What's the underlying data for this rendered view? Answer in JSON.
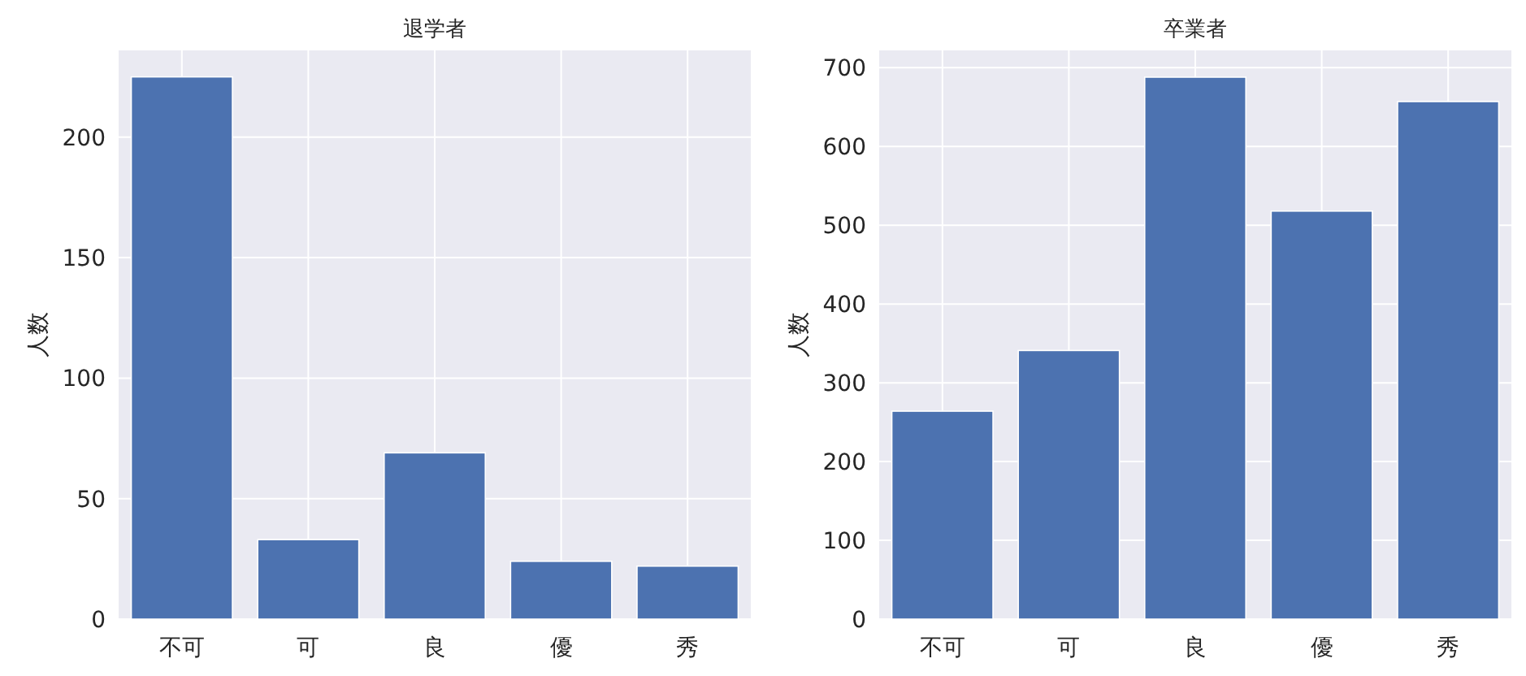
{
  "chart_data": [
    {
      "type": "bar",
      "title": "退学者",
      "ylabel": "人数",
      "categories": [
        "不可",
        "可",
        "良",
        "優",
        "秀"
      ],
      "values": [
        225,
        33,
        69,
        24,
        22
      ],
      "color": "#4c72b0",
      "ylim": [
        0,
        236
      ],
      "yticks": [
        0,
        50,
        100,
        150,
        200
      ],
      "grid": true
    },
    {
      "type": "bar",
      "title": "卒業者",
      "ylabel": "人数",
      "categories": [
        "不可",
        "可",
        "良",
        "優",
        "秀"
      ],
      "values": [
        264,
        341,
        688,
        518,
        657
      ],
      "color": "#4c72b0",
      "ylim": [
        0,
        722
      ],
      "yticks": [
        0,
        100,
        200,
        300,
        400,
        500,
        600,
        700
      ],
      "grid": true
    }
  ]
}
